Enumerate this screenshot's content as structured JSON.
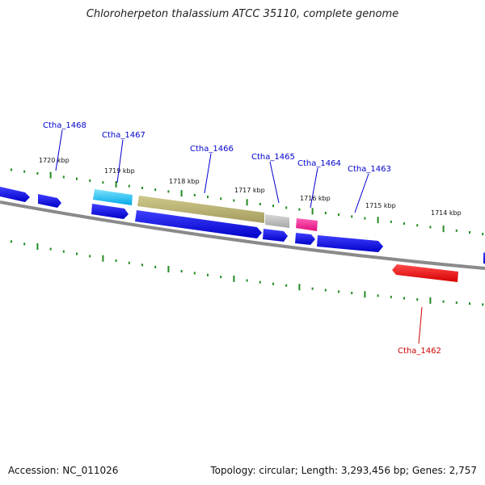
{
  "title": "Chloroherpeton thalassium ATCC 35110, complete genome",
  "footer": {
    "accession": "Accession: NC_011026",
    "topology": "Topology: circular; Length: 3,293,456 bp; Genes: 2,757"
  },
  "genome_map": {
    "kbp_labels": [
      "1720 kbp",
      "1719 kbp",
      "1718 kbp",
      "1717 kbp",
      "1716 kbp",
      "1715 kbp",
      "1714 kbp"
    ],
    "genes": [
      {
        "label": "Ctha_1468",
        "strand": "forward",
        "color": "#0000ee"
      },
      {
        "label": "Ctha_1467",
        "strand": "forward",
        "color": "#00bfff"
      },
      {
        "label": "Ctha_1466",
        "strand": "forward",
        "color": "#b5ad6e"
      },
      {
        "label": "Ctha_1465",
        "strand": "forward",
        "color": "#b4b4b4"
      },
      {
        "label": "Ctha_1464",
        "strand": "forward",
        "color": "#ff1493"
      },
      {
        "label": "Ctha_1463",
        "strand": "reverse",
        "color": "#0000ee"
      },
      {
        "label": "Ctha_1462",
        "strand": "reverse",
        "color": "#ff0000"
      }
    ],
    "colors": {
      "backbone": "#808080",
      "tick": "#228b22",
      "gene_label": "#0000cc",
      "highlight_label": "#cc0000"
    }
  }
}
